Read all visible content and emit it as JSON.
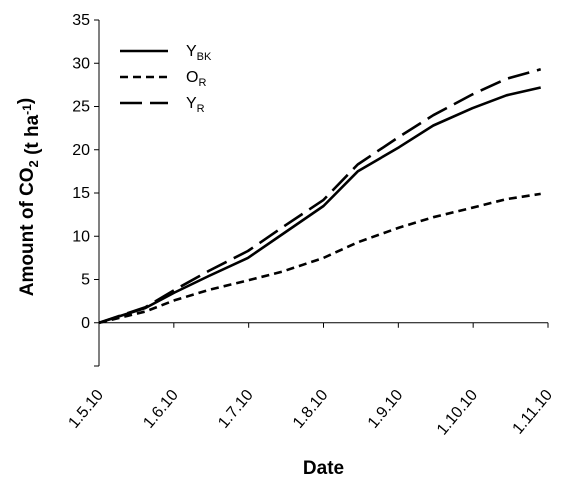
{
  "chart_data": {
    "type": "line",
    "xlabel": "Date",
    "ylabel": "Amount of CO₂ (t ha⁻¹)",
    "ylim": [
      -5,
      35
    ],
    "y_ticks": [
      "0",
      "5",
      "10",
      "15",
      "20",
      "25",
      "30",
      "35"
    ],
    "x_tick_labels": [
      "1.5.10",
      "1.6.10",
      "1.7.10",
      "1.8.10",
      "1.9.10",
      "1.10.10",
      "1.11.10"
    ],
    "x_range_dates": [
      "2010-05-01",
      "2010-11-01"
    ],
    "grid": false,
    "legend_position": "top-left",
    "series": [
      {
        "name": "Y",
        "name_sub": "BK",
        "line_style": "solid",
        "color": "#000000",
        "points": [
          [
            "2010-05-01",
            0.0
          ],
          [
            "2010-05-20",
            1.7
          ],
          [
            "2010-06-01",
            3.5
          ],
          [
            "2010-06-15",
            5.4
          ],
          [
            "2010-07-01",
            7.5
          ],
          [
            "2010-07-15",
            10.2
          ],
          [
            "2010-08-01",
            13.5
          ],
          [
            "2010-08-15",
            17.5
          ],
          [
            "2010-09-01",
            20.3
          ],
          [
            "2010-09-15",
            22.8
          ],
          [
            "2010-10-01",
            24.8
          ],
          [
            "2010-10-15",
            26.3
          ],
          [
            "2010-10-29",
            27.2
          ]
        ]
      },
      {
        "name": "O",
        "name_sub": "R",
        "line_style": "short-dash",
        "color": "#000000",
        "points": [
          [
            "2010-05-01",
            0.0
          ],
          [
            "2010-05-20",
            1.3
          ],
          [
            "2010-06-01",
            2.6
          ],
          [
            "2010-06-15",
            3.8
          ],
          [
            "2010-07-01",
            4.9
          ],
          [
            "2010-07-15",
            5.9
          ],
          [
            "2010-08-01",
            7.5
          ],
          [
            "2010-08-15",
            9.3
          ],
          [
            "2010-09-01",
            11.0
          ],
          [
            "2010-09-15",
            12.2
          ],
          [
            "2010-10-01",
            13.3
          ],
          [
            "2010-10-15",
            14.3
          ],
          [
            "2010-10-29",
            14.9
          ]
        ]
      },
      {
        "name": "Y",
        "name_sub": "R",
        "line_style": "long-dash",
        "color": "#000000",
        "points": [
          [
            "2010-05-01",
            0.0
          ],
          [
            "2010-05-20",
            1.8
          ],
          [
            "2010-06-01",
            3.8
          ],
          [
            "2010-06-15",
            6.0
          ],
          [
            "2010-07-01",
            8.3
          ],
          [
            "2010-07-15",
            11.0
          ],
          [
            "2010-08-01",
            14.2
          ],
          [
            "2010-08-15",
            18.3
          ],
          [
            "2010-09-01",
            21.5
          ],
          [
            "2010-09-15",
            24.0
          ],
          [
            "2010-10-01",
            26.4
          ],
          [
            "2010-10-15",
            28.2
          ],
          [
            "2010-10-29",
            29.3
          ]
        ]
      }
    ]
  }
}
